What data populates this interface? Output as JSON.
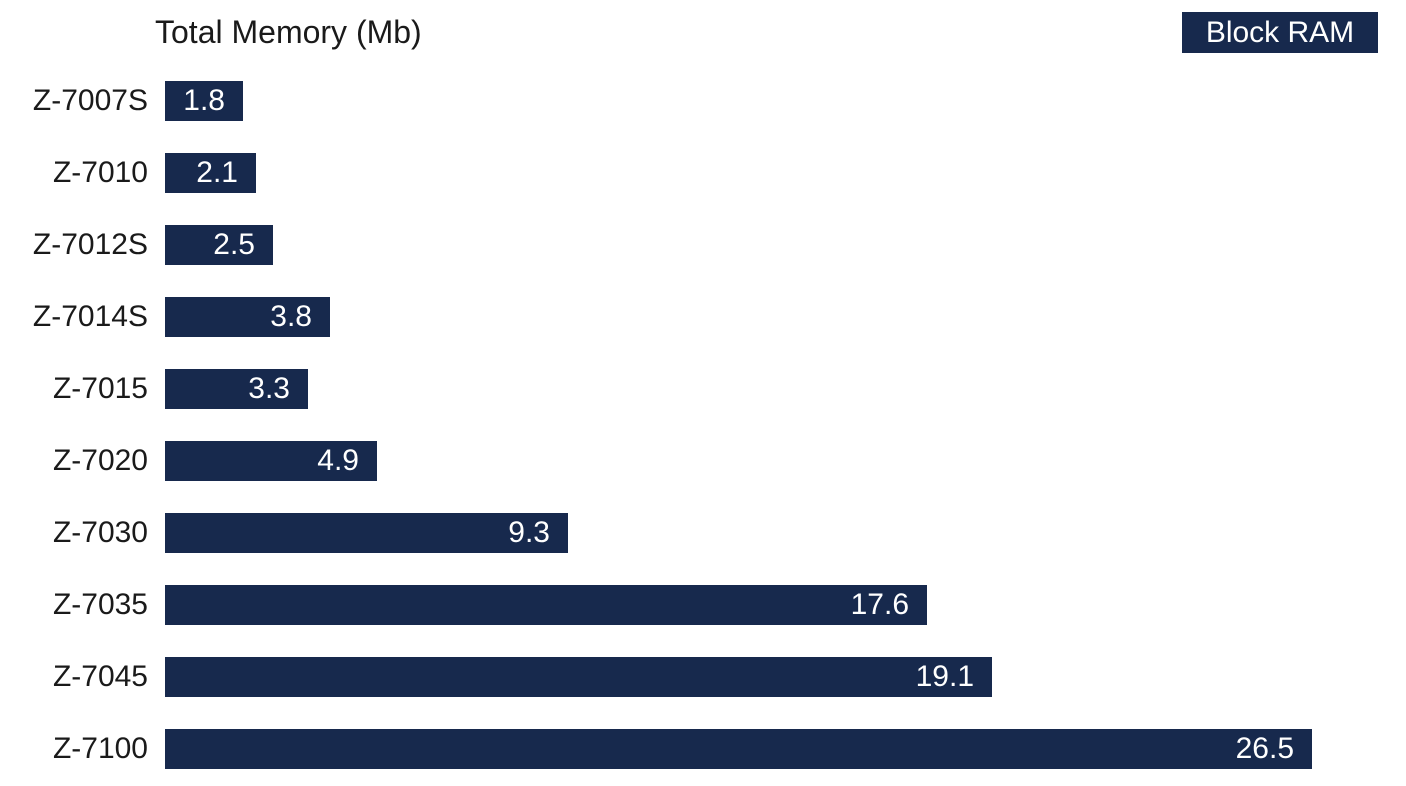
{
  "chart_data": {
    "type": "bar",
    "orientation": "horizontal",
    "title": "Total Memory (Mb)",
    "xlabel": "",
    "ylabel": "",
    "grid": false,
    "xlim": [
      0,
      28.7
    ],
    "legend": {
      "label": "Block RAM",
      "position": "top-right"
    },
    "categories": [
      "Z-7007S",
      "Z-7010",
      "Z-7012S",
      "Z-7014S",
      "Z-7015",
      "Z-7020",
      "Z-7030",
      "Z-7035",
      "Z-7045",
      "Z-7100"
    ],
    "values": [
      1.8,
      2.1,
      2.5,
      3.8,
      3.3,
      4.9,
      9.3,
      17.6,
      19.1,
      26.5
    ],
    "value_labels": [
      "1.8",
      "2.1",
      "2.5",
      "3.8",
      "3.3",
      "4.9",
      "9.3",
      "17.6",
      "19.1",
      "26.5"
    ],
    "colors": {
      "bar": "#17294D",
      "legend_bg": "#17294D",
      "legend_text": "#FFFFFF",
      "value_text": "#FFFFFF",
      "title_text": "#1A1A1A",
      "category_text": "#1A1A1A",
      "background": "#FFFFFF"
    }
  }
}
